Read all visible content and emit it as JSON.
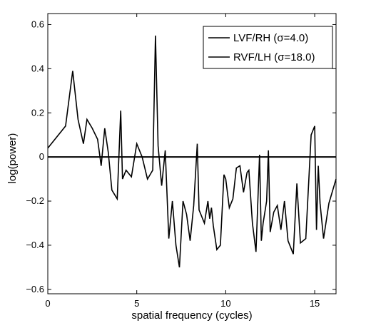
{
  "chart_data": {
    "type": "line",
    "title": "",
    "xlabel": "spatial frequency (cycles)",
    "ylabel": "log(power)",
    "xlim": [
      0,
      16.2
    ],
    "ylim": [
      -0.62,
      0.65
    ],
    "xticks": [
      0,
      5,
      10,
      15
    ],
    "yticks": [
      -0.6,
      -0.4,
      -0.2,
      0,
      0.2,
      0.4,
      0.6
    ],
    "xtick_labels": [
      "0",
      "5",
      "10",
      "15"
    ],
    "ytick_labels": [
      "−0.6",
      "−0.4",
      "−0.2",
      "0",
      "0.2",
      "0.4",
      "0.6"
    ],
    "grid": false,
    "legend_position": "top-right",
    "legend": [
      "LVF/RH (σ=4.0)",
      "RVF/LH (σ=18.0)"
    ],
    "series": [
      {
        "name": "LVF/RH (σ=4.0)",
        "color": "#000000",
        "x": [
          0,
          1.0,
          1.4,
          1.7,
          2.0,
          2.2,
          2.5,
          2.8,
          3.0,
          3.2,
          3.4,
          3.6,
          3.9,
          4.1,
          4.2,
          4.4,
          4.7,
          5.0,
          5.3,
          5.6,
          5.9,
          6.05,
          6.2,
          6.4,
          6.6,
          6.8,
          7.0,
          7.2,
          7.4,
          7.6,
          7.8,
          8.0,
          8.2,
          8.4,
          8.5,
          8.6,
          8.8,
          9.0,
          9.1,
          9.2,
          9.3,
          9.5,
          9.7,
          9.9,
          10.0,
          10.2,
          10.4,
          10.6,
          10.8,
          11.0,
          11.2,
          11.3,
          11.5,
          11.7,
          11.9,
          12.0,
          12.1,
          12.3,
          12.4,
          12.5,
          12.7,
          12.9,
          13.1,
          13.3,
          13.5,
          13.8,
          14.0,
          14.2,
          14.5,
          14.8,
          15.0,
          15.1,
          15.2,
          15.3,
          15.5,
          15.8,
          16.2
        ],
        "y": [
          0.04,
          0.14,
          0.39,
          0.17,
          0.06,
          0.17,
          0.13,
          0.08,
          -0.04,
          0.13,
          0.02,
          -0.15,
          -0.19,
          0.21,
          -0.1,
          -0.06,
          -0.09,
          0.06,
          0.0,
          -0.1,
          -0.06,
          0.55,
          0.05,
          -0.13,
          0.03,
          -0.37,
          -0.2,
          -0.4,
          -0.5,
          -0.2,
          -0.26,
          -0.38,
          -0.22,
          0.06,
          -0.24,
          -0.26,
          -0.3,
          -0.2,
          -0.28,
          -0.23,
          -0.31,
          -0.42,
          -0.4,
          -0.08,
          -0.1,
          -0.23,
          -0.19,
          -0.05,
          -0.04,
          -0.16,
          -0.07,
          -0.06,
          -0.3,
          -0.43,
          0.01,
          -0.38,
          -0.3,
          -0.2,
          0.03,
          -0.34,
          -0.25,
          -0.22,
          -0.33,
          -0.2,
          -0.38,
          -0.44,
          -0.12,
          -0.39,
          -0.37,
          0.1,
          0.14,
          -0.33,
          -0.04,
          -0.21,
          -0.37,
          -0.21,
          -0.1
        ]
      },
      {
        "name": "RVF/LH (σ=18.0)",
        "color": "#000000",
        "x": [
          0,
          16.2
        ],
        "y": [
          0,
          0
        ]
      }
    ]
  }
}
